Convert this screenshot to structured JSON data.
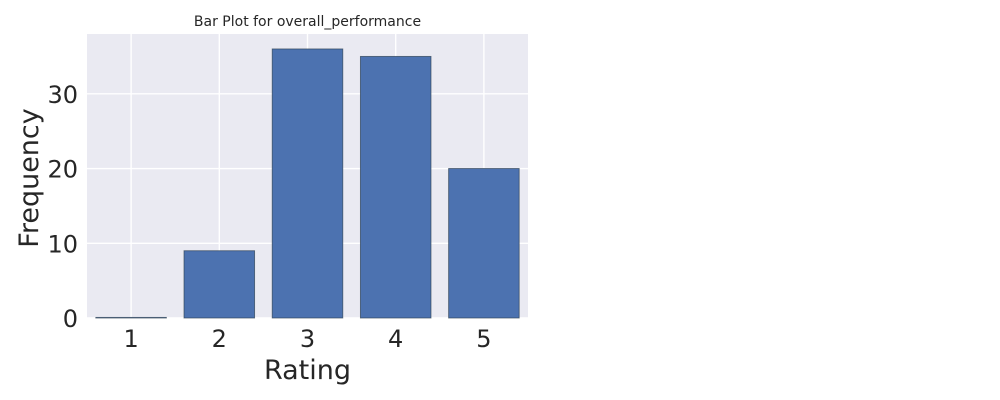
{
  "chart_data": {
    "type": "bar",
    "title": "Bar Plot for overall_performance",
    "xlabel": "Rating",
    "ylabel": "Frequency",
    "categories": [
      "1",
      "2",
      "3",
      "4",
      "5"
    ],
    "values": [
      0,
      9,
      36,
      35,
      20
    ],
    "ylim": [
      0,
      38
    ],
    "yticks": [
      0,
      10,
      20,
      30
    ],
    "grid": true,
    "legend": "none",
    "colors": {
      "bar": "#4c72b0",
      "plot_background": "#eaeaf2",
      "grid": "#ffffff",
      "text": "#262626"
    }
  }
}
